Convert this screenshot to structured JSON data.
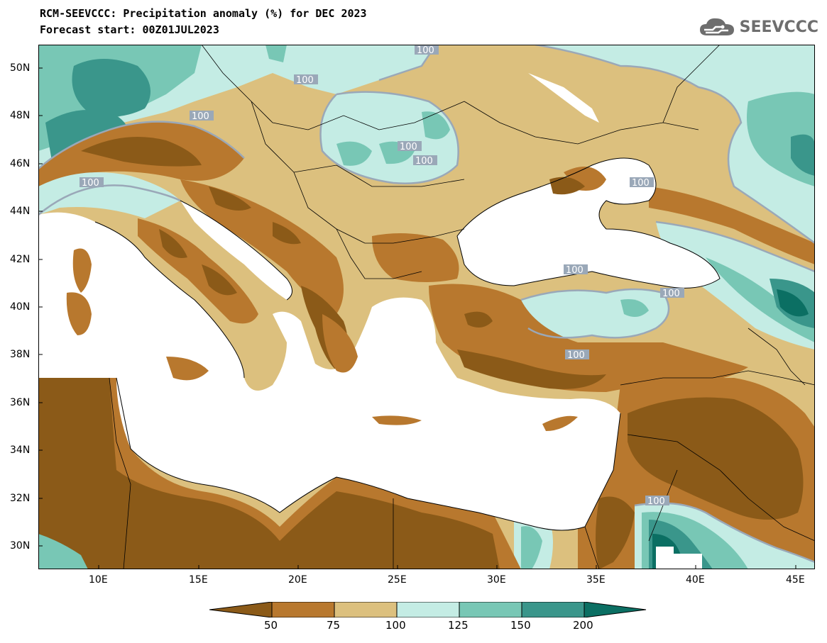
{
  "header": {
    "title": "RCM-SEEVCCC: Precipitation anomaly (%) for DEC 2023",
    "subtitle": "Forecast start: 00Z01JUL2023",
    "logo_text": "SEEVCCC"
  },
  "map": {
    "lat_labels": [
      "50N",
      "48N",
      "46N",
      "44N",
      "42N",
      "40N",
      "38N",
      "36N",
      "34N",
      "32N",
      "30N"
    ],
    "lon_labels": [
      "10E",
      "15E",
      "20E",
      "25E",
      "30E",
      "35E",
      "40E",
      "45E"
    ],
    "contour_labels": [
      "100",
      "100",
      "100",
      "100",
      "100",
      "100",
      "100",
      "100",
      "100",
      "100",
      "100",
      "100"
    ]
  },
  "colorbar": {
    "ticks": [
      "50",
      "75",
      "100",
      "125",
      "150",
      "200"
    ],
    "colors": [
      "#8b5a18",
      "#b8782e",
      "#dcc07e",
      "#c4ece4",
      "#78c7b5",
      "#3a968b",
      "#0b6f63"
    ]
  },
  "colors": {
    "land_default": "#dcc07e",
    "sea": "#ffffff",
    "contour": "#9aa8b8"
  }
}
